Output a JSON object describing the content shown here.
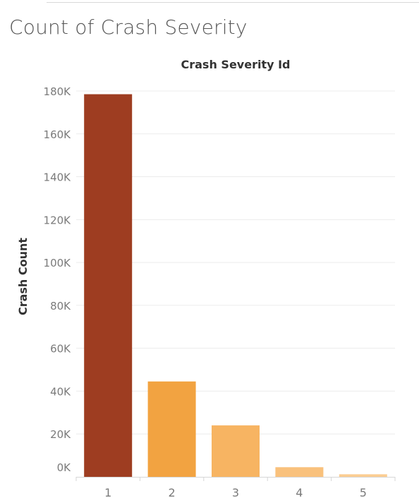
{
  "page": {
    "title": "Count of Crash Severity"
  },
  "colors": {
    "bars": [
      "#9e3d21",
      "#f2a341",
      "#f7b462",
      "#f9c17c",
      "#fbcd92"
    ],
    "gridline": "#ececec",
    "axis_text": "#7a7a7a",
    "label_text": "#333333"
  },
  "chart_data": {
    "type": "bar",
    "title": "Crash Severity Id",
    "xlabel": "",
    "ylabel": "Crash Count",
    "categories": [
      "1",
      "2",
      "3",
      "4",
      "5"
    ],
    "values": [
      178500,
      44500,
      24000,
      4500,
      1200
    ],
    "ylim": [
      0,
      180000
    ],
    "yticks": [
      0,
      20000,
      40000,
      60000,
      80000,
      100000,
      120000,
      140000,
      160000,
      180000
    ],
    "ytick_labels": [
      "0K",
      "20K",
      "40K",
      "60K",
      "80K",
      "100K",
      "120K",
      "140K",
      "160K",
      "180K"
    ],
    "grid": true,
    "legend": "none"
  }
}
